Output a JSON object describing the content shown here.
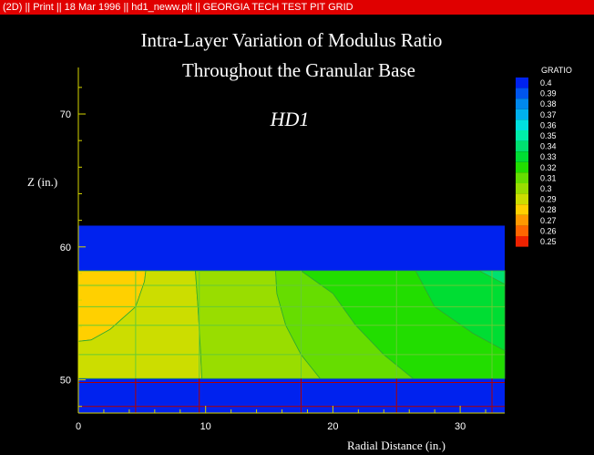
{
  "window": {
    "title_bar": "(2D) || Print || 18 Mar 1996 || hd1_neww.plt || GEORGIA TECH TEST PIT GRID"
  },
  "colors": {
    "background": "#000000",
    "title_bar": "#e00000",
    "axis": "#d6d600",
    "grid": "#b00000",
    "text": "#ffffff"
  },
  "chart_data": {
    "type": "heatmap",
    "title": "Intra-Layer Variation of Modulus Ratio",
    "subtitle": "Throughout the Granular Base",
    "annotation": "HD1",
    "xlabel": "Radial Distance (in.)",
    "ylabel": "Z (in.)",
    "xlim": [
      0,
      33.5
    ],
    "ylim": [
      47.5,
      73.5
    ],
    "xticks": [
      0,
      10,
      20,
      30
    ],
    "yticks": [
      50,
      60,
      70
    ],
    "grid": true,
    "grid_x": [
      0,
      4.5,
      9.5,
      17.5,
      25.0,
      32.5
    ],
    "grid_y": [
      48.0,
      49.8,
      51.9,
      54.1,
      55.5,
      57.1
    ],
    "legend": {
      "title": "G_RATIO",
      "placement": "right",
      "levels": [
        0.4,
        0.39,
        0.38,
        0.37,
        0.36,
        0.35,
        0.34,
        0.33,
        0.32,
        0.31,
        0.3,
        0.29,
        0.28,
        0.27,
        0.26,
        0.25
      ],
      "colors": [
        "#0022ee",
        "#0055ee",
        "#0088ee",
        "#00b0ee",
        "#00e0e0",
        "#00eeaa",
        "#00e070",
        "#00dd33",
        "#22dd00",
        "#66dd00",
        "#99dd00",
        "#ccdd00",
        "#ffd000",
        "#ff9900",
        "#ff6600",
        "#ee2200"
      ]
    },
    "layers": [
      {
        "name": "top",
        "z": [
          58.2,
          61.6
        ],
        "value": 0.4
      },
      {
        "name": "base",
        "z": [
          50.1,
          58.2
        ],
        "value_range": [
          0.28,
          0.34
        ]
      },
      {
        "name": "bottom",
        "z": [
          47.5,
          50.1
        ],
        "value": 0.4
      }
    ],
    "base_zones": [
      {
        "value": 0.28,
        "polygon": [
          [
            0,
            52.9
          ],
          [
            1,
            53.0
          ],
          [
            2.5,
            53.8
          ],
          [
            4.5,
            55.5
          ],
          [
            5.2,
            57.4
          ],
          [
            5.3,
            58.2
          ],
          [
            0,
            58.2
          ]
        ]
      },
      {
        "value": 0.29,
        "polygon": [
          [
            0,
            50.1
          ],
          [
            9.7,
            50.1
          ],
          [
            9.6,
            52.2
          ],
          [
            9.4,
            55.5
          ],
          [
            9.2,
            58.2
          ],
          [
            5.3,
            58.2
          ],
          [
            5.2,
            57.4
          ],
          [
            4.5,
            55.5
          ],
          [
            2.5,
            53.8
          ],
          [
            1,
            53.0
          ],
          [
            0,
            52.9
          ]
        ]
      },
      {
        "value": 0.3,
        "polygon": [
          [
            9.7,
            50.1
          ],
          [
            19.0,
            50.1
          ],
          [
            17.5,
            51.9
          ],
          [
            16.3,
            54.1
          ],
          [
            15.6,
            56.5
          ],
          [
            15.5,
            58.2
          ],
          [
            9.2,
            58.2
          ],
          [
            9.4,
            55.5
          ],
          [
            9.6,
            52.2
          ]
        ]
      },
      {
        "value": 0.31,
        "polygon": [
          [
            19.0,
            50.1
          ],
          [
            26.3,
            50.1
          ],
          [
            24.0,
            51.9
          ],
          [
            21.8,
            54.1
          ],
          [
            20.0,
            56.5
          ],
          [
            17.5,
            58.2
          ],
          [
            15.5,
            58.2
          ],
          [
            15.6,
            56.5
          ],
          [
            16.3,
            54.1
          ],
          [
            17.5,
            51.9
          ]
        ]
      },
      {
        "value": 0.32,
        "polygon": [
          [
            26.3,
            50.1
          ],
          [
            33.5,
            50.1
          ],
          [
            33.5,
            52.2
          ],
          [
            31.0,
            53.5
          ],
          [
            28.0,
            55.5
          ],
          [
            26.5,
            58.2
          ],
          [
            17.5,
            58.2
          ],
          [
            20.0,
            56.5
          ],
          [
            21.8,
            54.1
          ],
          [
            24.0,
            51.9
          ]
        ]
      },
      {
        "value": 0.33,
        "polygon": [
          [
            33.5,
            52.2
          ],
          [
            33.5,
            58.2
          ],
          [
            26.5,
            58.2
          ],
          [
            28.0,
            55.5
          ],
          [
            31.0,
            53.5
          ]
        ]
      },
      {
        "value": 0.34,
        "polygon": [
          [
            31.5,
            58.2
          ],
          [
            33.5,
            58.2
          ],
          [
            33.5,
            57.2
          ]
        ]
      }
    ]
  }
}
